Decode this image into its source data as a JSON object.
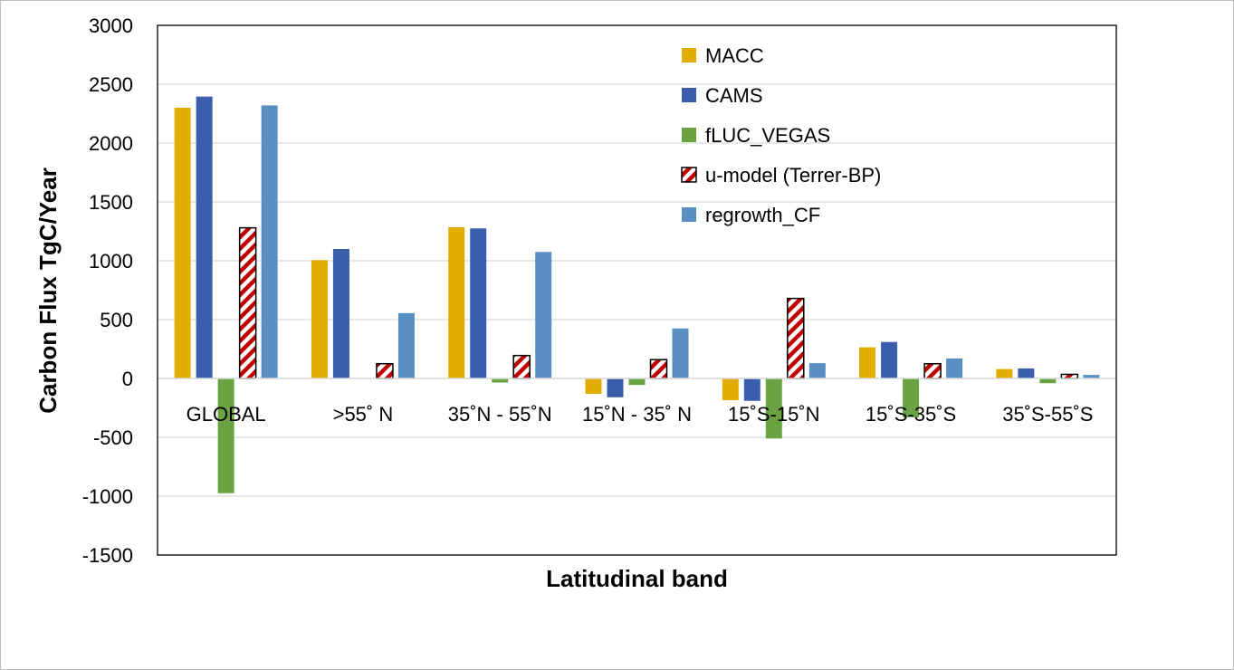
{
  "chart_data": {
    "type": "bar",
    "title": "",
    "xlabel": "Latitudinal band",
    "ylabel": "Carbon Flux TgC/Year",
    "ylim": [
      -1500,
      3000
    ],
    "yticks": [
      3000,
      2500,
      2000,
      1500,
      1000,
      500,
      0,
      -500,
      -1000,
      -1500
    ],
    "grid": "horizontal",
    "legend_position": "top-right",
    "categories": [
      "GLOBAL",
      ">55˚ N",
      "35˚N - 55˚N",
      "15˚N - 35˚ N",
      "15˚S-15˚N",
      "15˚S-35˚S",
      "35˚S-55˚S"
    ],
    "series": [
      {
        "name": "MACC",
        "color": "#e3ac00",
        "pattern": "solid",
        "values": [
          2300,
          1005,
          1285,
          -130,
          -185,
          265,
          80
        ]
      },
      {
        "name": "CAMS",
        "color": "#3a5eac",
        "pattern": "solid",
        "values": [
          2395,
          1100,
          1275,
          -160,
          -190,
          310,
          85
        ]
      },
      {
        "name": "fLUC_VEGAS",
        "color": "#6aa341",
        "pattern": "solid",
        "values": [
          -975,
          0,
          -35,
          -55,
          -510,
          -330,
          -40
        ]
      },
      {
        "name": "u-model (Terrer-BP)",
        "color": "#c00000",
        "pattern": "diagonal-stripes",
        "values": [
          1280,
          125,
          195,
          160,
          680,
          125,
          35
        ]
      },
      {
        "name": "regrowth_CF",
        "color": "#5a8fc4",
        "pattern": "solid",
        "values": [
          2320,
          555,
          1075,
          425,
          130,
          170,
          30
        ]
      }
    ]
  }
}
